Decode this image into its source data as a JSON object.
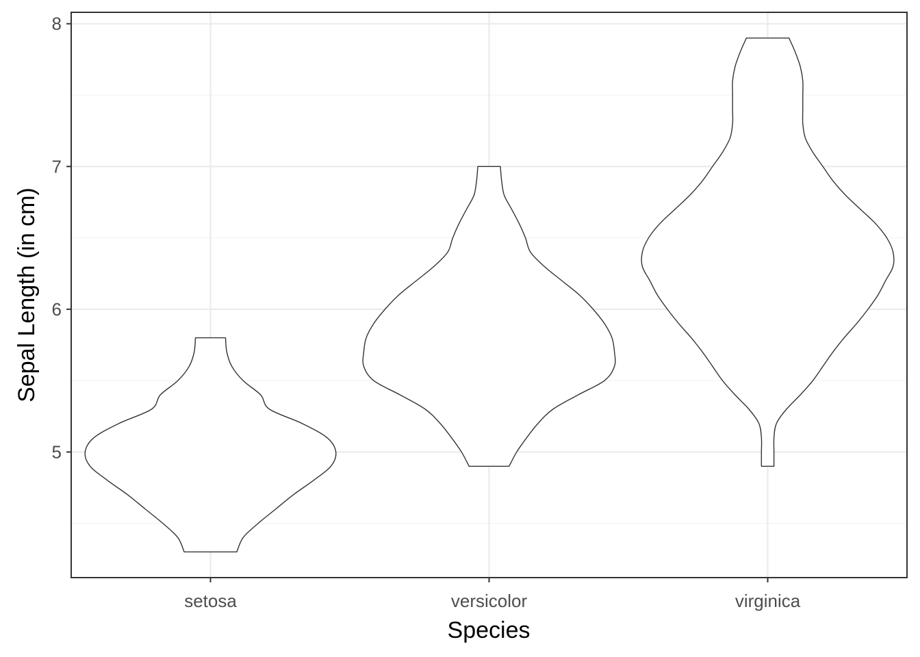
{
  "chart_data": {
    "type": "violin",
    "xlabel": "Species",
    "ylabel": "Sepal Length (in cm)",
    "categories": [
      "setosa",
      "versicolor",
      "virginica"
    ],
    "ylim": [
      4.12,
      8.08
    ],
    "yticks": [
      5,
      6,
      7,
      8
    ],
    "grid": true,
    "fill_color": "#ffffff",
    "outline_color": "#333333",
    "violins": [
      {
        "category": "setosa",
        "min": 4.3,
        "max": 5.8,
        "density_profile": [
          [
            4.3,
            0.21
          ],
          [
            4.4,
            0.26
          ],
          [
            4.5,
            0.38
          ],
          [
            4.6,
            0.52
          ],
          [
            4.7,
            0.66
          ],
          [
            4.8,
            0.82
          ],
          [
            4.9,
            0.96
          ],
          [
            5.0,
            1.0
          ],
          [
            5.1,
            0.93
          ],
          [
            5.2,
            0.73
          ],
          [
            5.3,
            0.47
          ],
          [
            5.4,
            0.4
          ],
          [
            5.5,
            0.26
          ],
          [
            5.6,
            0.17
          ],
          [
            5.7,
            0.13
          ],
          [
            5.8,
            0.12
          ]
        ]
      },
      {
        "category": "versicolor",
        "min": 4.9,
        "max": 7.0,
        "density_profile": [
          [
            4.9,
            0.16
          ],
          [
            5.0,
            0.22
          ],
          [
            5.1,
            0.3
          ],
          [
            5.2,
            0.39
          ],
          [
            5.3,
            0.51
          ],
          [
            5.4,
            0.71
          ],
          [
            5.5,
            0.92
          ],
          [
            5.6,
            1.0
          ],
          [
            5.7,
            1.0
          ],
          [
            5.8,
            0.98
          ],
          [
            5.9,
            0.92
          ],
          [
            6.0,
            0.83
          ],
          [
            6.1,
            0.72
          ],
          [
            6.2,
            0.58
          ],
          [
            6.3,
            0.44
          ],
          [
            6.4,
            0.33
          ],
          [
            6.5,
            0.29
          ],
          [
            6.6,
            0.24
          ],
          [
            6.7,
            0.18
          ],
          [
            6.8,
            0.12
          ],
          [
            6.9,
            0.1
          ],
          [
            7.0,
            0.09
          ]
        ]
      },
      {
        "category": "virginica",
        "min": 4.9,
        "max": 7.9,
        "density_profile": [
          [
            4.9,
            0.05
          ],
          [
            5.0,
            0.05
          ],
          [
            5.1,
            0.05
          ],
          [
            5.2,
            0.07
          ],
          [
            5.3,
            0.15
          ],
          [
            5.4,
            0.26
          ],
          [
            5.5,
            0.36
          ],
          [
            5.6,
            0.44
          ],
          [
            5.7,
            0.52
          ],
          [
            5.8,
            0.61
          ],
          [
            5.9,
            0.71
          ],
          [
            6.0,
            0.8
          ],
          [
            6.1,
            0.88
          ],
          [
            6.2,
            0.94
          ],
          [
            6.3,
            1.0
          ],
          [
            6.4,
            1.0
          ],
          [
            6.5,
            0.95
          ],
          [
            6.6,
            0.86
          ],
          [
            6.7,
            0.74
          ],
          [
            6.8,
            0.62
          ],
          [
            6.9,
            0.52
          ],
          [
            7.0,
            0.44
          ],
          [
            7.1,
            0.36
          ],
          [
            7.2,
            0.3
          ],
          [
            7.3,
            0.28
          ],
          [
            7.4,
            0.28
          ],
          [
            7.5,
            0.28
          ],
          [
            7.6,
            0.28
          ],
          [
            7.7,
            0.26
          ],
          [
            7.8,
            0.22
          ],
          [
            7.9,
            0.17
          ]
        ]
      }
    ]
  }
}
